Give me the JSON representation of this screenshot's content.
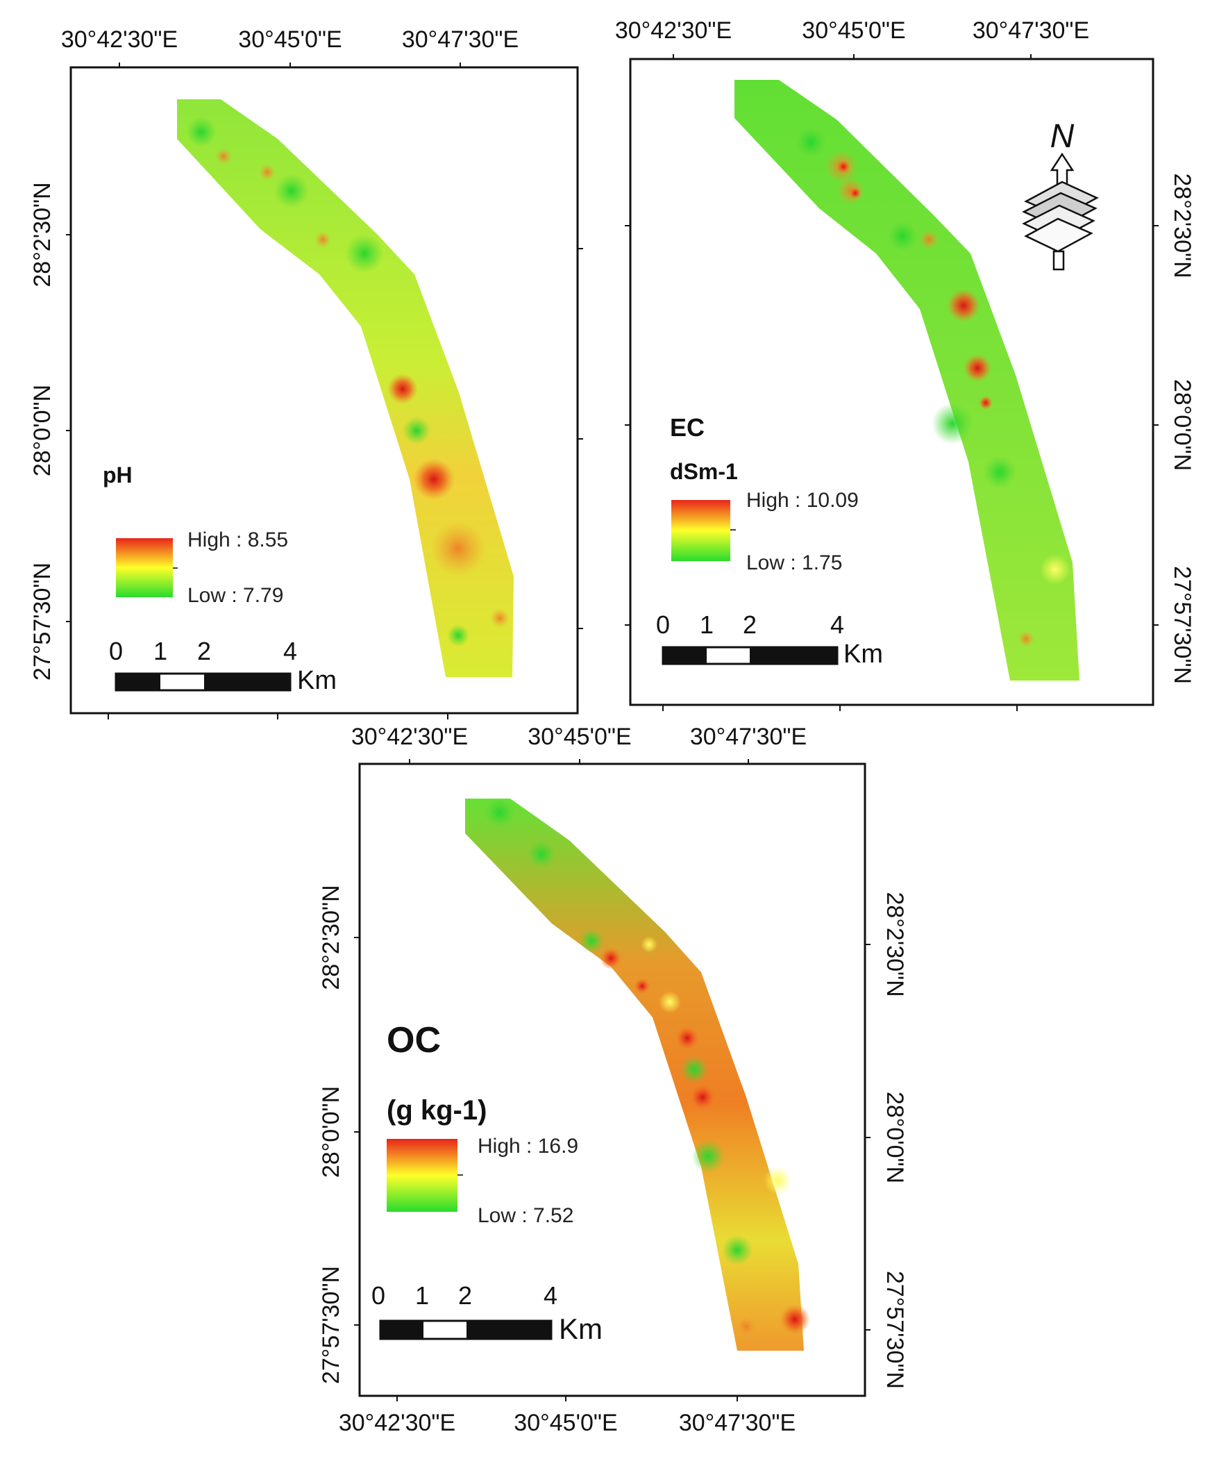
{
  "figure": {
    "panels": [
      {
        "id": "ph",
        "variable": "pH",
        "unit": "",
        "legend": {
          "high": "High : 8.55",
          "low": "Low : 7.79"
        },
        "top_ticks": [
          "30°42'30\"E",
          "30°45'0\"E",
          "30°47'30\"E"
        ],
        "left_ticks": [
          "28°2'30\"N",
          "28°0'0\"N",
          "27°57'30\"N"
        ],
        "scale": {
          "labels": [
            "0",
            "1",
            "2",
            "4"
          ],
          "unit": "Km"
        }
      },
      {
        "id": "ec",
        "variable": "EC",
        "unit": "dSm-1",
        "legend": {
          "high": "High : 10.09",
          "low": "Low : 1.75"
        },
        "top_ticks": [
          "30°42'30\"E",
          "30°45'0\"E",
          "30°47'30\"E"
        ],
        "right_ticks": [
          "28°2'30\"N",
          "28°0'0\"N",
          "27°57'30\"N"
        ],
        "scale": {
          "labels": [
            "0",
            "1",
            "2",
            "4"
          ],
          "unit": "Km"
        },
        "north_arrow": {
          "letter": "N",
          "icon": "north-arrow-icon"
        }
      },
      {
        "id": "oc",
        "variable": "OC",
        "unit": "(g kg-1)",
        "legend": {
          "high": "High : 16.9",
          "low": "Low : 7.52"
        },
        "top_ticks": [
          "30°42'30\"E",
          "30°45'0\"E",
          "30°47'30\"E"
        ],
        "bottom_ticks": [
          "30°42'30\"E",
          "30°45'0\"E",
          "30°47'30\"E"
        ],
        "left_ticks": [
          "28°2'30\"N",
          "28°0'0\"N",
          "27°57'30\"N"
        ],
        "right_ticks": [
          "28°2'30\"N",
          "28°0'0\"N",
          "27°57'30\"N"
        ],
        "scale": {
          "labels": [
            "0",
            "1",
            "2",
            "4"
          ],
          "unit": "Km"
        }
      }
    ]
  },
  "colors": {
    "high": "#e8251a",
    "mid": "#ffff2a",
    "low": "#27dc2c",
    "frame": "#111111"
  }
}
